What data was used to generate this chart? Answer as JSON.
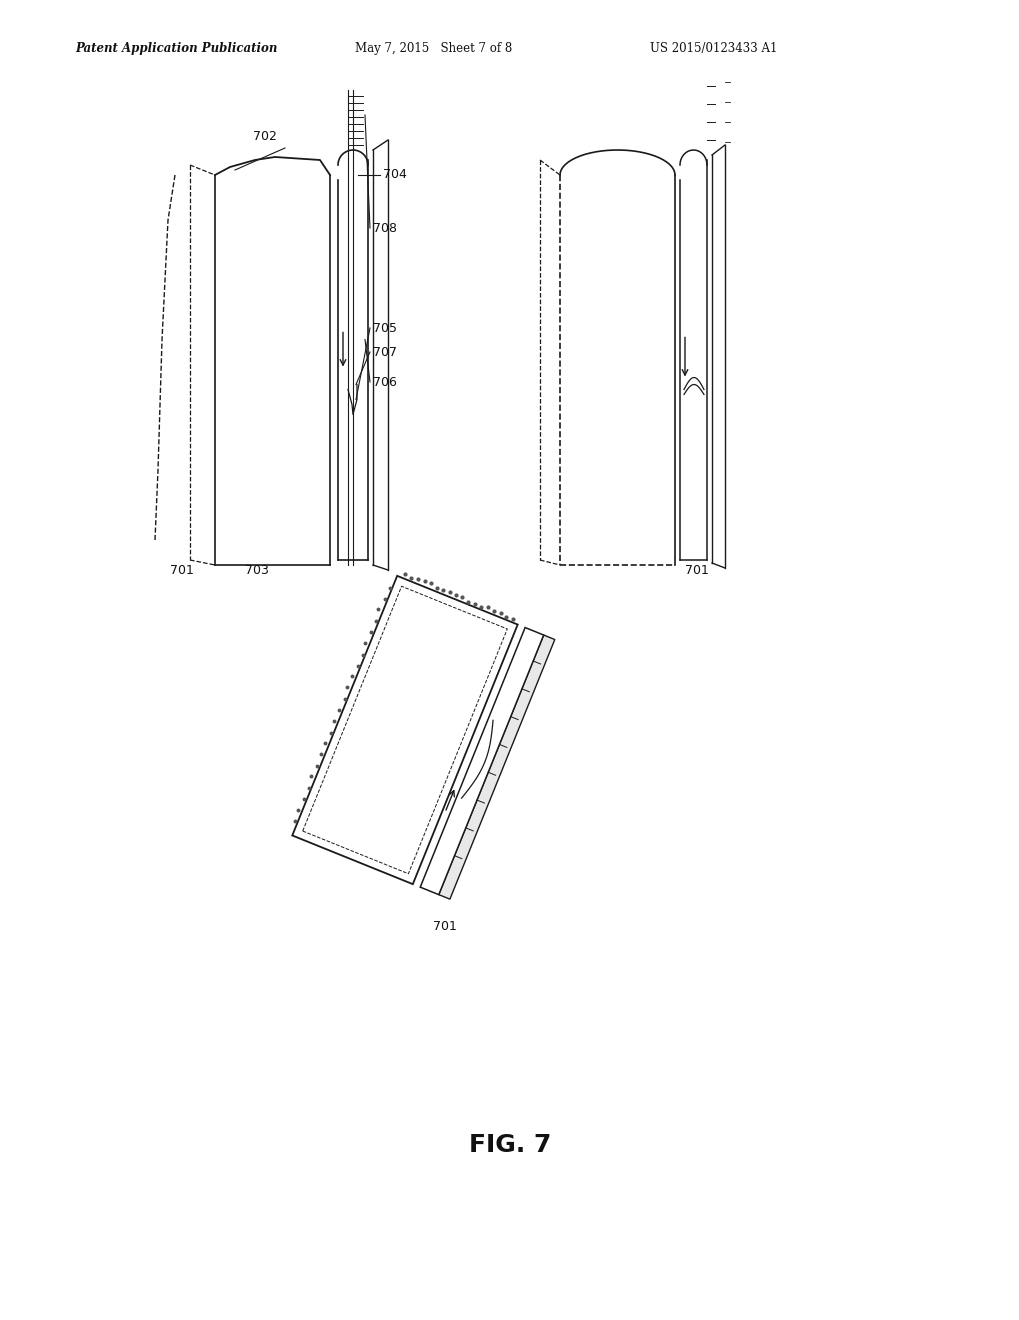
{
  "header_left": "Patent Application Publication",
  "header_center": "May 7, 2015   Sheet 7 of 8",
  "header_right": "US 2015/0123433 A1",
  "bg_color": "#ffffff",
  "fig_label": "FIG. 7",
  "line_color": "#1a1a1a",
  "text_color": "#111111"
}
